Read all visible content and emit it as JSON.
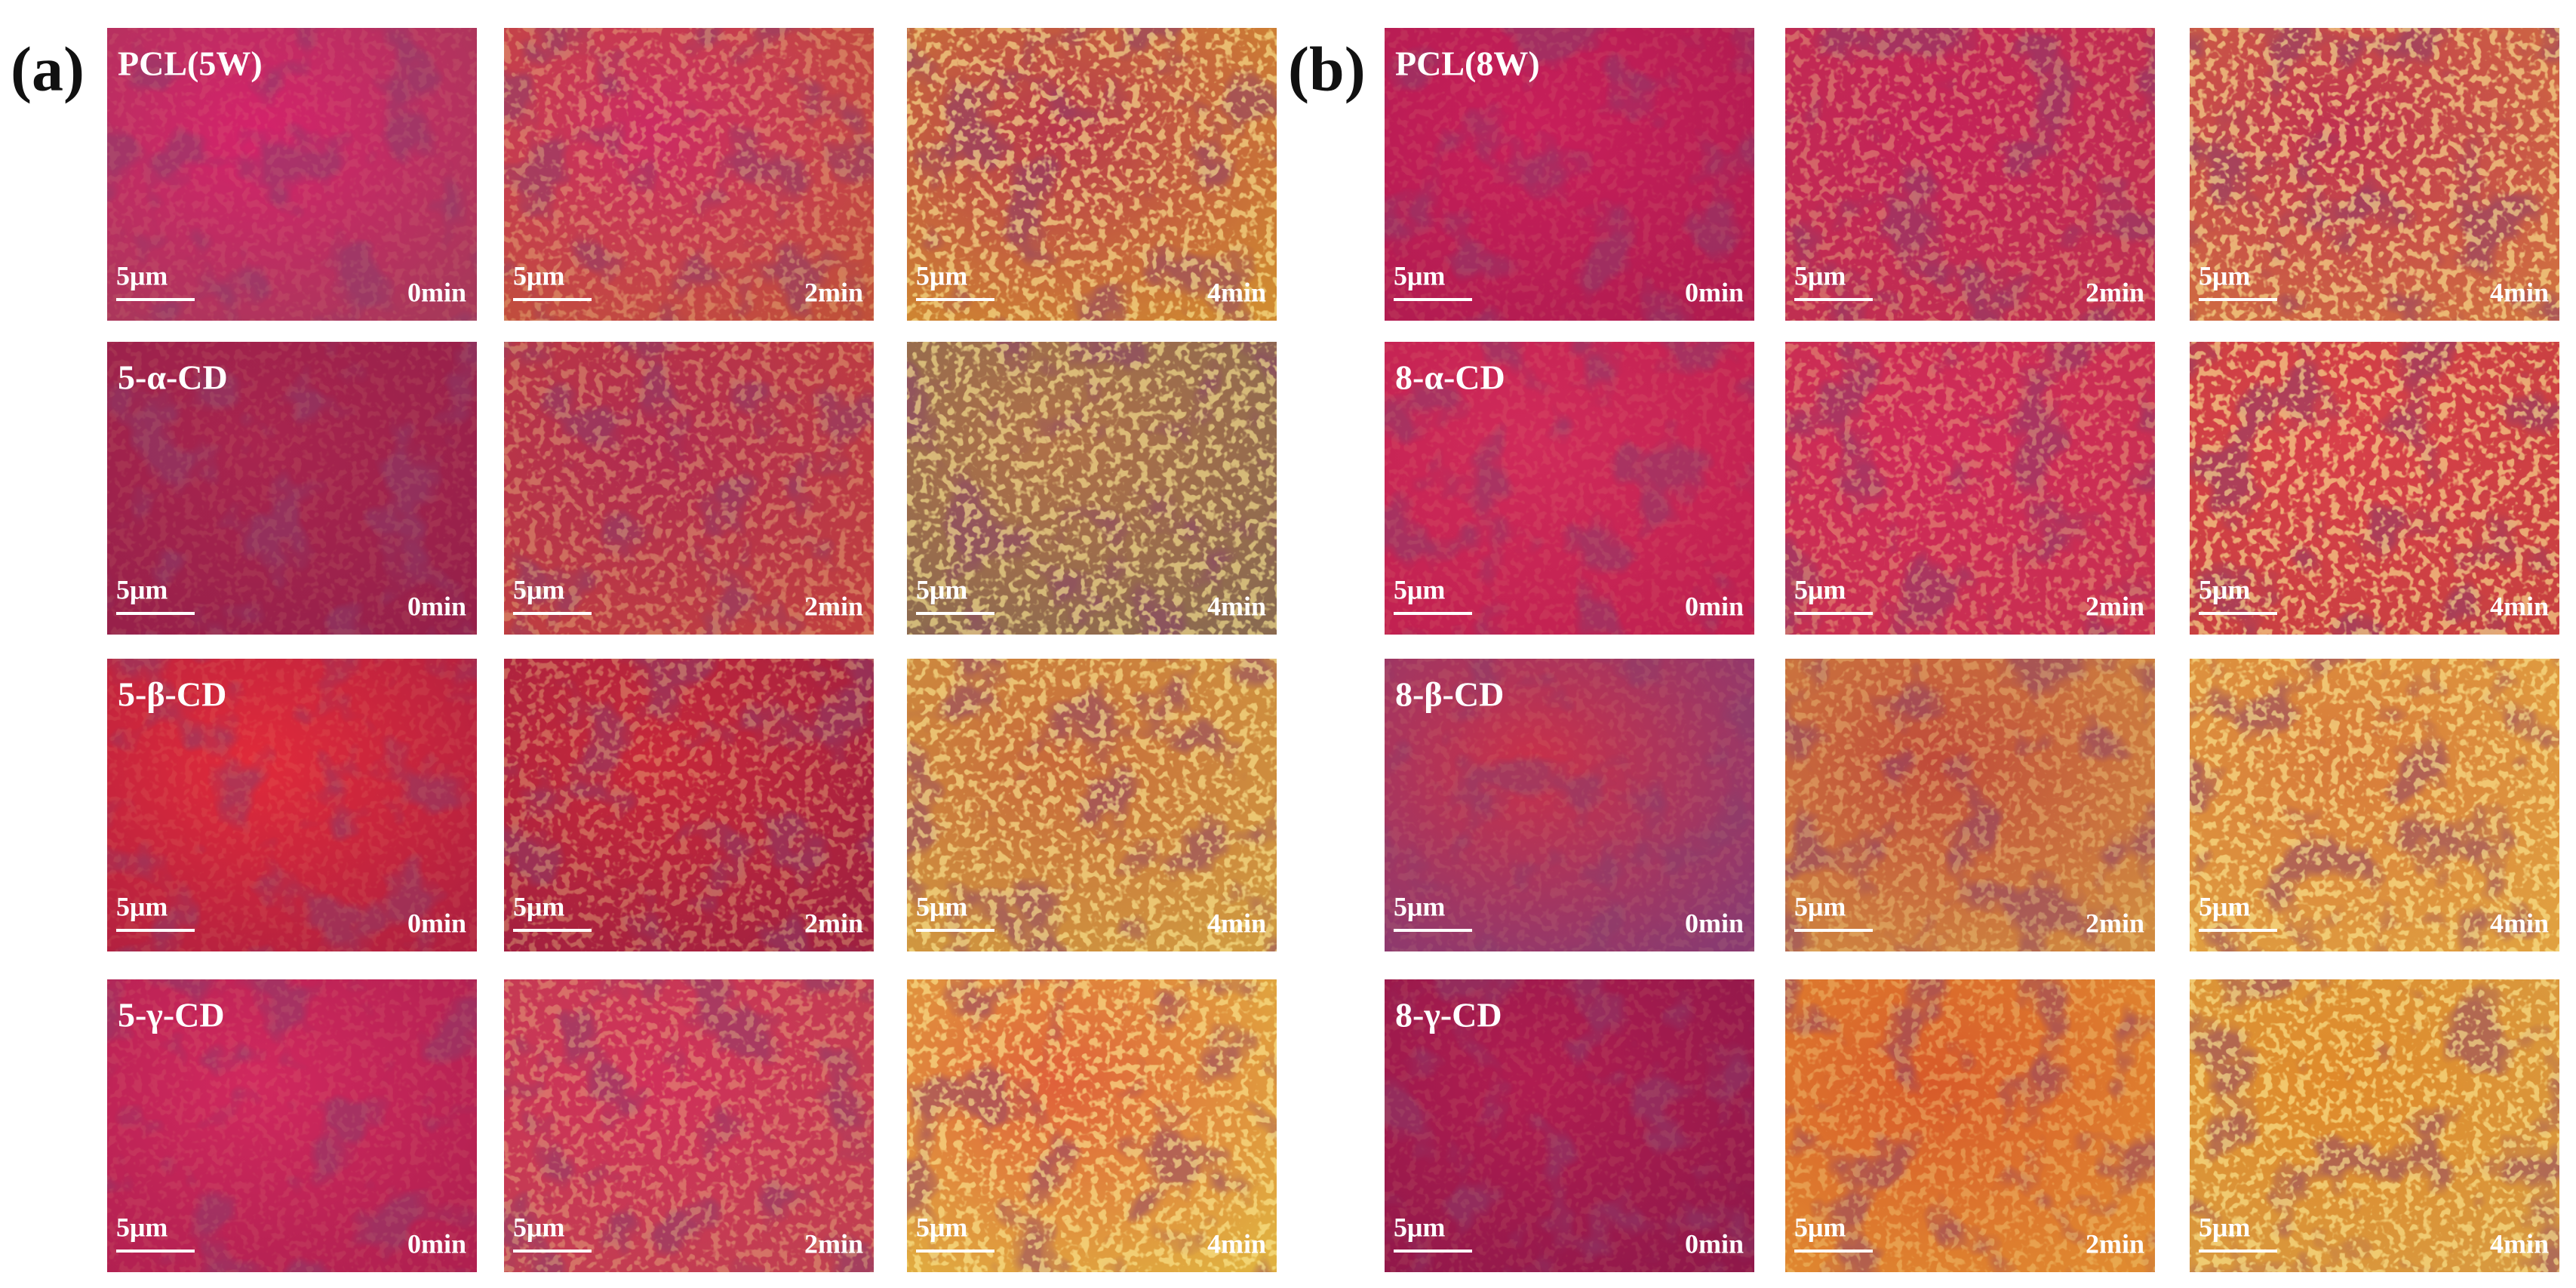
{
  "panels": [
    {
      "label": "(a)",
      "rows": [
        {
          "sample": "PCL(5W)",
          "images": [
            {
              "scale": "5μm",
              "time": "0min"
            },
            {
              "scale": "5μm",
              "time": "2min"
            },
            {
              "scale": "5μm",
              "time": "4min"
            }
          ]
        },
        {
          "sample": "5-α-CD",
          "images": [
            {
              "scale": "5μm",
              "time": "0min"
            },
            {
              "scale": "5μm",
              "time": "2min"
            },
            {
              "scale": "5μm",
              "time": "4min"
            }
          ]
        },
        {
          "sample": "5-β-CD",
          "images": [
            {
              "scale": "5μm",
              "time": "0min"
            },
            {
              "scale": "5μm",
              "time": "2min"
            },
            {
              "scale": "5μm",
              "time": "4min"
            }
          ]
        },
        {
          "sample": "5-γ-CD",
          "images": [
            {
              "scale": "5μm",
              "time": "0min"
            },
            {
              "scale": "5μm",
              "time": "2min"
            },
            {
              "scale": "5μm",
              "time": "4min"
            }
          ]
        }
      ]
    },
    {
      "label": "(b)",
      "rows": [
        {
          "sample": "PCL(8W)",
          "images": [
            {
              "scale": "5μm",
              "time": "0min"
            },
            {
              "scale": "5μm",
              "time": "2min"
            },
            {
              "scale": "5μm",
              "time": "4min"
            }
          ]
        },
        {
          "sample": "8-α-CD",
          "images": [
            {
              "scale": "5μm",
              "time": "0min"
            },
            {
              "scale": "5μm",
              "time": "2min"
            },
            {
              "scale": "5μm",
              "time": "4min"
            }
          ]
        },
        {
          "sample": "8-β-CD",
          "images": [
            {
              "scale": "5μm",
              "time": "0min"
            },
            {
              "scale": "5μm",
              "time": "2min"
            },
            {
              "scale": "5μm",
              "time": "4min"
            }
          ]
        },
        {
          "sample": "8-γ-CD",
          "images": [
            {
              "scale": "5μm",
              "time": "0min"
            },
            {
              "scale": "5μm",
              "time": "2min"
            },
            {
              "scale": "5μm",
              "time": "4min"
            }
          ]
        }
      ]
    }
  ]
}
